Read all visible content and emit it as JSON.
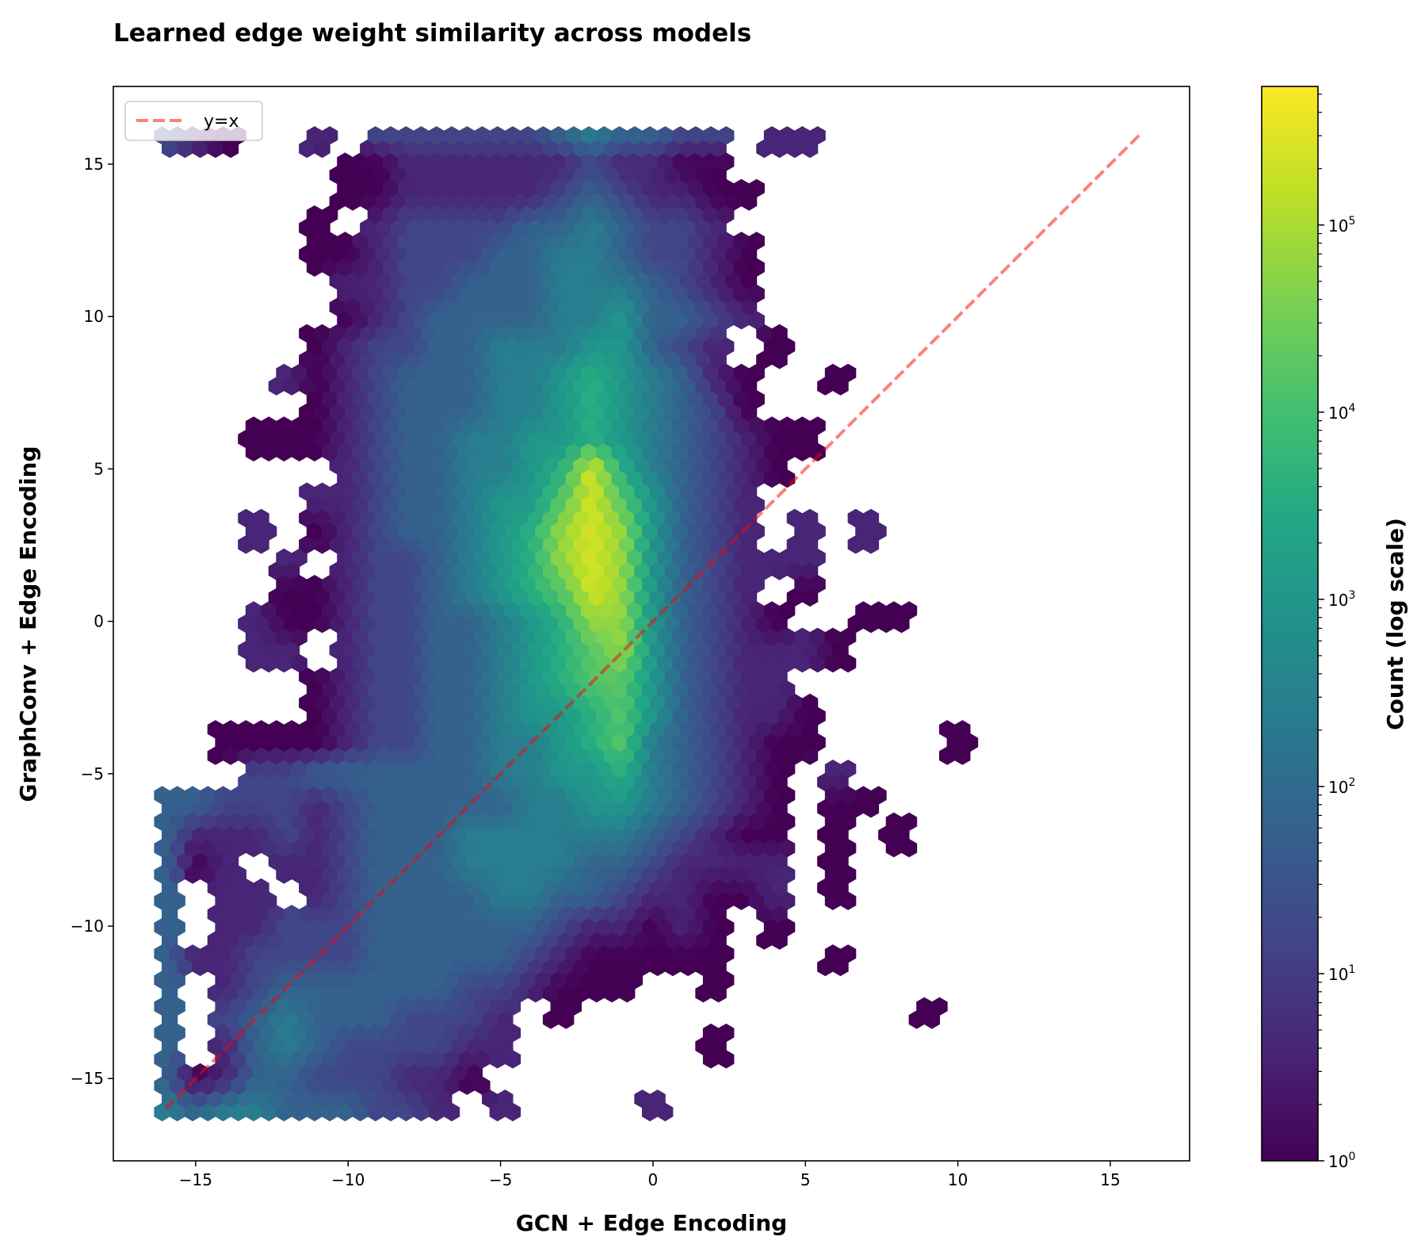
{
  "chart_data": {
    "type": "heatmap",
    "subtype": "hexbin",
    "title": "Learned edge weight similarity across models",
    "xlabel": "GCN + Edge Encoding",
    "ylabel": "GraphConv + Edge Encoding",
    "xlim": [
      -17.7,
      17.6
    ],
    "ylim": [
      -17.7,
      17.55
    ],
    "xticks": [
      -15,
      -10,
      -5,
      0,
      5,
      10,
      15
    ],
    "yticks": [
      -15,
      -10,
      -5,
      0,
      5,
      10,
      15
    ],
    "xtick_labels": [
      "−15",
      "−10",
      "−5",
      "0",
      "5",
      "10",
      "15"
    ],
    "ytick_labels": [
      "−15",
      "−10",
      "−5",
      "0",
      "5",
      "10",
      "15"
    ],
    "grid": false,
    "colormap": "viridis",
    "color_scale": "log",
    "density_grid": {
      "description": "approximate log-count level per 1-unit cell; digit d means log10(count) ≈ 0.6*d; '.' = empty",
      "x_start": -16,
      "x_step": 1,
      "y_start": 16,
      "y_step": -1,
      "level_log10_per_digit": 0.6,
      "rows": [
        "210..1.222222343322.11...........",
        "......0011111121100..............",
        "......00111112321100.............",
        ".....0.122223343221..............",
        ".....001222334432210.............",
        "......11223334443210.............",
        "......01233334453321.............",
        ".....01223344455321 0............",
        "....1012333445654310..0..........",
        ".....012333445654320.............",
        "...0001233445565432100...........",
        "......123344569643210............",
        ".....112334557975321.............",
        "...1.012334568985321.1.1.........",
        "....1.1223456898532111...........",
        "....0012234567985321 0...........",
        "...100122334568853210..00........",
        "...11.12233456785321110..........",
        ".....0122334567753211............",
        ".....01223345567532110...........",
        "..00001223344567432100....0......",
        "...223333334455643210.1..........",
        "332221233333445543210 00.........",
        "311121233344444432100 0.0........",
        "301.11233344443321111 0..........",
        "3.11.1233334433211001 0..........",
        "3.11222333333211010.0............",
        "3112222333332100000...0..........",
        "3.12333333221000..0..............",
        "3.2343332221 0...........0........",
        "3.1343222211......0..............",
        "30133222110......................",
        "4344333221.1....1................"
      ]
    },
    "colorbar": {
      "label": "Count (log scale)",
      "min": 1,
      "max": 550000,
      "tick_base": "10",
      "tick_exponents": [
        "0",
        "1",
        "2",
        "3",
        "4",
        "5"
      ]
    },
    "reference_line": {
      "label": "y=x",
      "from": [
        -16,
        -16
      ],
      "to": [
        16,
        16
      ],
      "style": "dashed",
      "color": "#ff0000",
      "alpha": 0.5
    },
    "legend": {
      "entries": [
        "y=x"
      ],
      "placement": "top-left"
    }
  }
}
